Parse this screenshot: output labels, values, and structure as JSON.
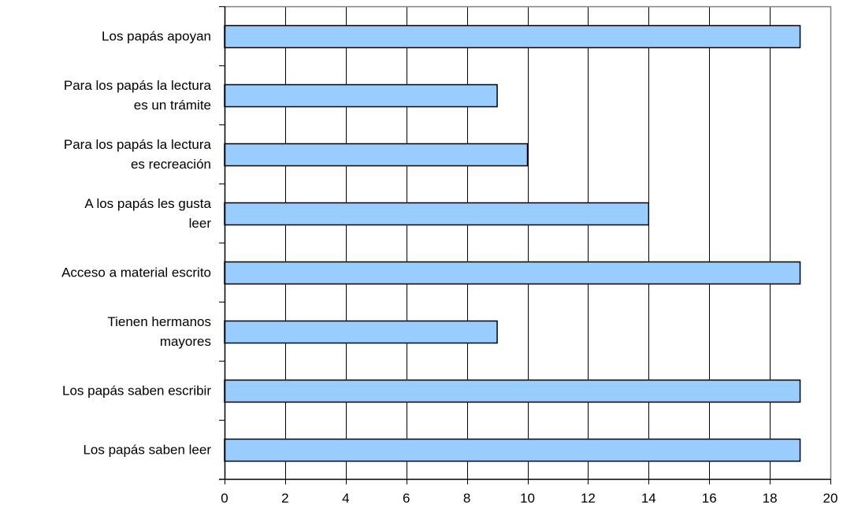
{
  "chart_data": {
    "type": "bar",
    "orientation": "horizontal",
    "title": "",
    "xlabel": "",
    "ylabel": "",
    "categories": [
      "Los papás apoyan",
      "Para los papás la lectura es un trámite",
      "Para los papás la lectura es recreación",
      "A los papás les gusta leer",
      "Acceso a material escrito",
      "Tienen hermanos mayores",
      "Los papás saben escribir",
      "Los papás saben leer"
    ],
    "category_lines": [
      [
        "Los papás apoyan"
      ],
      [
        "Para los papás la lectura",
        "es un trámite"
      ],
      [
        "Para los papás la lectura",
        "es recreación"
      ],
      [
        "A los papás les gusta",
        "leer"
      ],
      [
        "Acceso a material escrito"
      ],
      [
        "Tienen hermanos",
        "mayores"
      ],
      [
        "Los papás saben escribir"
      ],
      [
        "Los papás saben leer"
      ]
    ],
    "values": [
      19,
      9,
      10,
      14,
      19,
      9,
      19,
      19
    ],
    "xlim": [
      0,
      20
    ],
    "xticks": [
      0,
      2,
      4,
      6,
      8,
      10,
      12,
      14,
      16,
      18,
      20
    ],
    "grid": "vertical",
    "legend": "none",
    "colors": {
      "bar_fill": "#99ccff",
      "bar_stroke": "#000000",
      "grid": "#000000",
      "axis": "#000000",
      "frame": "#808080"
    }
  }
}
